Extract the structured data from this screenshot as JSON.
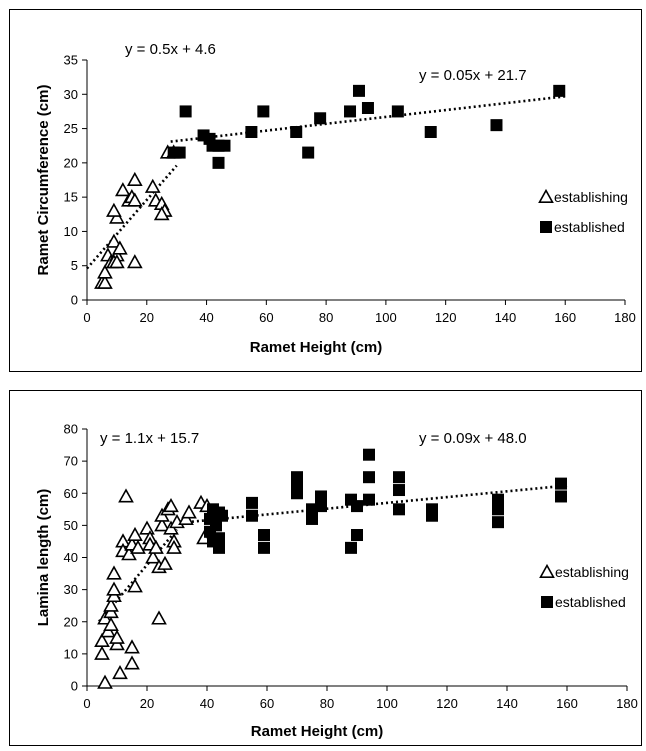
{
  "chart_data": [
    {
      "type": "scatter",
      "xlabel": "Ramet Height (cm)",
      "ylabel": "Ramet Circumference (cm)",
      "xlim": [
        0,
        180
      ],
      "ylim": [
        0,
        35
      ],
      "x_ticks": [
        "0",
        "20",
        "40",
        "60",
        "80",
        "100",
        "120",
        "140",
        "160",
        "180"
      ],
      "y_ticks": [
        "0",
        "5",
        "10",
        "15",
        "20",
        "25",
        "30",
        "35"
      ],
      "equations": [
        "y = 0.5x + 4.6",
        "y = 0.05x + 21.7"
      ],
      "trendlines": [
        {
          "series": "establishing",
          "slope": 0.5,
          "intercept": 4.6,
          "x_range": [
            0,
            30
          ]
        },
        {
          "series": "established",
          "slope": 0.05,
          "intercept": 21.7,
          "x_range": [
            28,
            160
          ]
        }
      ],
      "legend_position": "right",
      "series": [
        {
          "name": "establishing",
          "marker": "open-triangle",
          "points": [
            [
              5,
              2.5
            ],
            [
              6,
              2.5
            ],
            [
              6,
              4
            ],
            [
              7,
              6.5
            ],
            [
              8,
              5.5
            ],
            [
              9,
              8.5
            ],
            [
              10,
              6.5
            ],
            [
              10,
              12
            ],
            [
              11,
              7.5
            ],
            [
              9,
              13
            ],
            [
              12,
              16
            ],
            [
              14,
              14.5
            ],
            [
              15,
              15
            ],
            [
              16,
              14.5
            ],
            [
              16,
              17.5
            ],
            [
              16,
              5.5
            ],
            [
              9,
              5.5
            ],
            [
              10,
              5.5
            ],
            [
              22,
              16.5
            ],
            [
              23,
              14.5
            ],
            [
              25,
              14
            ],
            [
              26,
              13
            ],
            [
              25,
              12.5
            ],
            [
              27,
              21.5
            ],
            [
              29,
              21.5
            ]
          ]
        },
        {
          "name": "established",
          "marker": "filled-square",
          "points": [
            [
              29,
              21.5
            ],
            [
              31,
              21.5
            ],
            [
              33,
              27.5
            ],
            [
              39,
              24
            ],
            [
              41,
              23.5
            ],
            [
              42,
              22.5
            ],
            [
              44,
              22.5
            ],
            [
              44,
              20
            ],
            [
              46,
              22.5
            ],
            [
              55,
              24.5
            ],
            [
              59,
              27.5
            ],
            [
              70,
              24.5
            ],
            [
              74,
              21.5
            ],
            [
              78,
              26.5
            ],
            [
              88,
              27.5
            ],
            [
              91,
              30.5
            ],
            [
              94,
              28
            ],
            [
              104,
              27.5
            ],
            [
              115,
              24.5
            ],
            [
              137,
              25.5
            ],
            [
              158,
              30.5
            ]
          ]
        }
      ]
    },
    {
      "type": "scatter",
      "xlabel": "Ramet Height (cm)",
      "ylabel": "Lamina length (cm)",
      "xlim": [
        0,
        180
      ],
      "ylim": [
        0,
        80
      ],
      "x_ticks": [
        "0",
        "20",
        "40",
        "60",
        "80",
        "100",
        "120",
        "140",
        "160",
        "180"
      ],
      "y_ticks": [
        "0",
        "10",
        "20",
        "30",
        "40",
        "50",
        "60",
        "70",
        "80"
      ],
      "equations": [
        "y = 1.1x + 15.7",
        "y = 0.09x + 48.0"
      ],
      "trendlines": [
        {
          "series": "establishing",
          "slope": 1.1,
          "intercept": 15.7,
          "x_range": [
            4,
            30
          ]
        },
        {
          "series": "established",
          "slope": 0.09,
          "intercept": 48.0,
          "x_range": [
            30,
            160
          ]
        }
      ],
      "legend_position": "right",
      "series": [
        {
          "name": "establishing",
          "marker": "open-triangle",
          "points": [
            [
              6,
              1
            ],
            [
              5,
              10
            ],
            [
              5,
              14
            ],
            [
              6,
              21
            ],
            [
              7,
              17
            ],
            [
              8,
              19
            ],
            [
              8,
              23
            ],
            [
              8,
              25
            ],
            [
              9,
              28
            ],
            [
              9,
              30
            ],
            [
              9,
              35
            ],
            [
              10,
              13
            ],
            [
              10,
              15
            ],
            [
              11,
              4
            ],
            [
              12,
              45
            ],
            [
              12,
              42
            ],
            [
              13,
              59
            ],
            [
              14,
              41
            ],
            [
              15,
              44
            ],
            [
              15,
              12
            ],
            [
              15,
              7
            ],
            [
              16,
              47
            ],
            [
              16,
              31
            ],
            [
              17,
              43
            ],
            [
              20,
              49
            ],
            [
              21,
              46
            ],
            [
              21,
              44
            ],
            [
              22,
              40
            ],
            [
              23,
              43
            ],
            [
              24,
              37
            ],
            [
              24,
              21
            ],
            [
              25,
              50
            ],
            [
              25,
              53
            ],
            [
              26,
              38
            ],
            [
              27,
              55
            ],
            [
              28,
              56
            ],
            [
              28,
              49
            ],
            [
              29,
              45
            ],
            [
              29,
              43
            ],
            [
              30,
              51
            ],
            [
              33,
              52
            ],
            [
              34,
              54
            ],
            [
              38,
              57
            ],
            [
              39,
              46
            ],
            [
              40,
              56
            ]
          ]
        },
        {
          "name": "established",
          "marker": "filled-square",
          "points": [
            [
              41,
              52
            ],
            [
              41,
              48
            ],
            [
              42,
              45
            ],
            [
              42,
              55
            ],
            [
              43,
              50
            ],
            [
              44,
              54
            ],
            [
              44,
              46
            ],
            [
              44,
              43
            ],
            [
              45,
              53
            ],
            [
              55,
              57
            ],
            [
              55,
              53
            ],
            [
              59,
              47
            ],
            [
              59,
              43
            ],
            [
              70,
              65
            ],
            [
              70,
              63
            ],
            [
              70,
              60
            ],
            [
              75,
              55
            ],
            [
              75,
              52
            ],
            [
              78,
              59
            ],
            [
              78,
              56
            ],
            [
              88,
              58
            ],
            [
              88,
              43
            ],
            [
              90,
              56
            ],
            [
              90,
              47
            ],
            [
              94,
              72
            ],
            [
              94,
              65
            ],
            [
              94,
              58
            ],
            [
              104,
              65
            ],
            [
              104,
              61
            ],
            [
              104,
              55
            ],
            [
              115,
              55
            ],
            [
              115,
              53
            ],
            [
              137,
              58
            ],
            [
              137,
              55
            ],
            [
              137,
              51
            ],
            [
              158,
              63
            ],
            [
              158,
              59
            ]
          ]
        }
      ]
    }
  ]
}
